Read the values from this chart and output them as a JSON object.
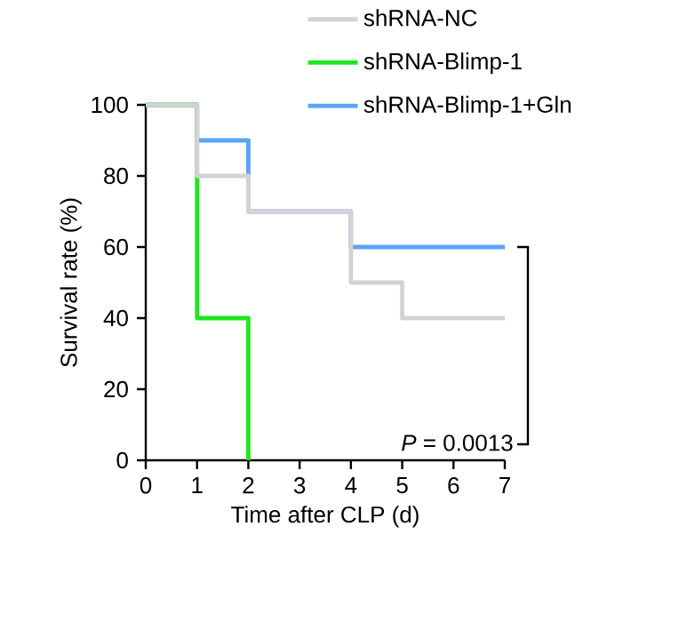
{
  "chart_data": {
    "type": "step",
    "xlabel": "Time after CLP (d)",
    "ylabel": "Survival rate (%)",
    "xlim": [
      0,
      7
    ],
    "xticks": [
      0,
      1,
      2,
      3,
      4,
      5,
      6,
      7
    ],
    "ylim": [
      0,
      100
    ],
    "yticks": [
      0,
      20,
      40,
      60,
      80,
      100
    ],
    "legend": "top right",
    "series": [
      {
        "name": "shRNA-NC",
        "color": "#d3d3d3",
        "x": [
          0,
          1,
          2,
          4,
          5,
          7
        ],
        "values": [
          100,
          80,
          70,
          50,
          40,
          40
        ]
      },
      {
        "name": "shRNA-Blimp-1",
        "color": "#1ee61e",
        "x": [
          0,
          1,
          2
        ],
        "values": [
          100,
          40,
          0
        ]
      },
      {
        "name": "shRNA-Blimp-1+Gln",
        "color": "#5ba3f5",
        "x": [
          0,
          1,
          2,
          4,
          7
        ],
        "values": [
          100,
          90,
          70,
          60,
          60
        ]
      }
    ],
    "annotations": [
      "*P* = 0.0013"
    ]
  }
}
